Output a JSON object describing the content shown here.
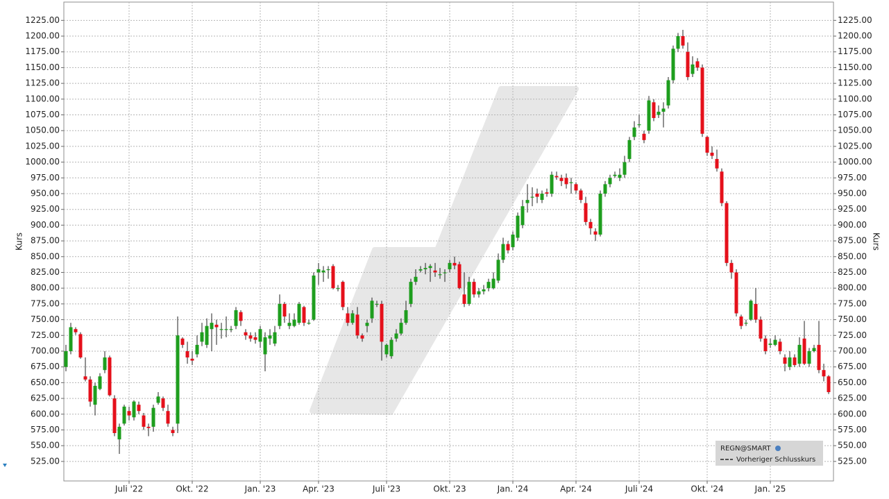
{
  "chart_data": {
    "type": "candlestick",
    "y_label": "Kurs",
    "legend": {
      "title": "REGN@SMART",
      "entries": [
        "Vorheriger Schlusskurs"
      ]
    },
    "up_color": "#1e9e1e",
    "down_color": "#e5101b",
    "grid": true,
    "ylim": [
      494,
      1254
    ],
    "yticks": [
      {
        "value": 525,
        "label": "525.00"
      },
      {
        "value": 550,
        "label": "550.00"
      },
      {
        "value": 575,
        "label": "575.00"
      },
      {
        "value": 600,
        "label": "600.00"
      },
      {
        "value": 625,
        "label": "625.00"
      },
      {
        "value": 650,
        "label": "650.00"
      },
      {
        "value": 675,
        "label": "675.00"
      },
      {
        "value": 700,
        "label": "700.00"
      },
      {
        "value": 725,
        "label": "725.00"
      },
      {
        "value": 750,
        "label": "750.00"
      },
      {
        "value": 775,
        "label": "775.00"
      },
      {
        "value": 800,
        "label": "800.00"
      },
      {
        "value": 825,
        "label": "825.00"
      },
      {
        "value": 850,
        "label": "850.00"
      },
      {
        "value": 875,
        "label": "875.00"
      },
      {
        "value": 900,
        "label": "900.00"
      },
      {
        "value": 925,
        "label": "925.00"
      },
      {
        "value": 950,
        "label": "950.00"
      },
      {
        "value": 975,
        "label": "975.00"
      },
      {
        "value": 1000,
        "label": "1000.00"
      },
      {
        "value": 1025,
        "label": "1025.00"
      },
      {
        "value": 1050,
        "label": "1050.00"
      },
      {
        "value": 1075,
        "label": "1075.00"
      },
      {
        "value": 1100,
        "label": "1100.00"
      },
      {
        "value": 1125,
        "label": "1125.00"
      },
      {
        "value": 1150,
        "label": "1150.00"
      },
      {
        "value": 1175,
        "label": "1175.00"
      },
      {
        "value": 1200,
        "label": "1200.00"
      },
      {
        "value": 1225,
        "label": "1225.00"
      }
    ],
    "categories": [
      null,
      null,
      null,
      null,
      null,
      null,
      null,
      null,
      null,
      null,
      null,
      null,
      null,
      "Juli '22",
      null,
      null,
      null,
      null,
      null,
      null,
      null,
      null,
      null,
      null,
      null,
      null,
      "Okt. '22",
      null,
      null,
      null,
      null,
      null,
      null,
      null,
      null,
      null,
      null,
      null,
      null,
      null,
      "Jan. '23",
      null,
      null,
      null,
      null,
      null,
      null,
      null,
      null,
      null,
      null,
      null,
      "Apr. '23",
      null,
      null,
      null,
      null,
      null,
      null,
      null,
      null,
      null,
      null,
      null,
      null,
      null,
      "Juli '23",
      null,
      null,
      null,
      null,
      null,
      null,
      null,
      null,
      null,
      null,
      null,
      null,
      "Okt. '23",
      null,
      null,
      null,
      null,
      null,
      null,
      null,
      null,
      null,
      null,
      null,
      null,
      "Jan. '24",
      null,
      null,
      null,
      null,
      null,
      null,
      null,
      null,
      null,
      null,
      null,
      null,
      "Apr. '24",
      null,
      null,
      null,
      null,
      null,
      null,
      null,
      null,
      null,
      null,
      null,
      null,
      "Juli '24",
      null,
      null,
      null,
      null,
      null,
      null,
      null,
      null,
      null,
      null,
      null,
      null,
      null,
      "Okt. '24",
      null,
      null,
      null,
      null,
      null,
      null,
      null,
      null,
      null,
      null,
      null,
      null,
      "Jan. '25",
      null,
      null,
      null,
      null,
      null,
      null,
      null,
      null,
      null,
      null,
      null,
      null
    ],
    "open": [
      675,
      700,
      735,
      727,
      660,
      655,
      615,
      640,
      670,
      690,
      625,
      560,
      585,
      605,
      595,
      615,
      598,
      580,
      580,
      618,
      625,
      605,
      575,
      585,
      720,
      700,
      688,
      695,
      715,
      710,
      735,
      742,
      735,
      735,
      735,
      740,
      762,
      730,
      725,
      722,
      715,
      695,
      720,
      712,
      740,
      775,
      740,
      740,
      745,
      770,
      745,
      750,
      825,
      825,
      830,
      835,
      800,
      810,
      760,
      745,
      758,
      725,
      740,
      752,
      775,
      775,
      695,
      692,
      720,
      728,
      745,
      775,
      810,
      828,
      830,
      832,
      828,
      822,
      825,
      830,
      840,
      838,
      790,
      775,
      810,
      790,
      795,
      800,
      800,
      812,
      845,
      870,
      865,
      880,
      900,
      935,
      945,
      950,
      940,
      952,
      950,
      978,
      975,
      975,
      968,
      965,
      955,
      935,
      905,
      890,
      885,
      950,
      965,
      978,
      975,
      980,
      1005,
      1040,
      1060,
      1045,
      1050,
      1095,
      1075,
      1080,
      1090,
      1130,
      1180,
      1200,
      1175,
      1140,
      1160,
      1150,
      1040,
      1015,
      1005,
      985,
      935,
      840,
      825,
      755,
      745,
      750,
      775,
      750,
      720,
      710,
      710,
      715,
      690,
      675,
      690,
      680,
      720,
      680,
      700,
      710,
      670,
      660
    ],
    "high": [
      710,
      745,
      738,
      730,
      690,
      660,
      650,
      665,
      700,
      693,
      630,
      585,
      615,
      612,
      622,
      620,
      602,
      585,
      615,
      635,
      628,
      615,
      580,
      755,
      722,
      715,
      700,
      725,
      745,
      752,
      760,
      750,
      745,
      755,
      740,
      770,
      765,
      735,
      730,
      730,
      740,
      730,
      735,
      740,
      790,
      778,
      760,
      760,
      778,
      772,
      750,
      825,
      840,
      835,
      835,
      838,
      805,
      812,
      770,
      765,
      770,
      728,
      750,
      785,
      780,
      780,
      712,
      722,
      735,
      752,
      780,
      815,
      830,
      835,
      840,
      838,
      840,
      832,
      830,
      845,
      850,
      842,
      825,
      818,
      815,
      800,
      805,
      815,
      825,
      855,
      880,
      875,
      890,
      920,
      940,
      965,
      960,
      958,
      955,
      958,
      985,
      985,
      980,
      982,
      975,
      968,
      958,
      945,
      910,
      895,
      955,
      970,
      980,
      985,
      990,
      1010,
      1040,
      1065,
      1075,
      1050,
      1105,
      1100,
      1090,
      1095,
      1135,
      1185,
      1205,
      1210,
      1190,
      1168,
      1165,
      1155,
      1042,
      1025,
      1020,
      990,
      938,
      845,
      830,
      758,
      750,
      782,
      800,
      755,
      725,
      720,
      725,
      720,
      695,
      700,
      695,
      722,
      748,
      705,
      710,
      748,
      680,
      662
    ],
    "low": [
      668,
      695,
      726,
      688,
      652,
      612,
      598,
      638,
      665,
      628,
      565,
      537,
      582,
      590,
      590,
      600,
      575,
      565,
      572,
      615,
      605,
      580,
      565,
      570,
      705,
      680,
      678,
      690,
      708,
      705,
      700,
      710,
      720,
      722,
      730,
      735,
      740,
      718,
      715,
      712,
      705,
      668,
      710,
      708,
      735,
      745,
      735,
      738,
      742,
      740,
      742,
      748,
      805,
      810,
      815,
      798,
      795,
      765,
      740,
      742,
      720,
      715,
      730,
      745,
      770,
      685,
      690,
      688,
      715,
      725,
      742,
      770,
      805,
      825,
      822,
      810,
      818,
      815,
      810,
      825,
      830,
      798,
      770,
      772,
      785,
      785,
      790,
      795,
      798,
      808,
      840,
      855,
      860,
      875,
      895,
      920,
      930,
      935,
      935,
      945,
      945,
      972,
      962,
      958,
      950,
      950,
      935,
      900,
      885,
      875,
      882,
      945,
      960,
      975,
      970,
      975,
      1000,
      1035,
      1055,
      1030,
      1045,
      1065,
      1070,
      1055,
      1085,
      1125,
      1175,
      1180,
      1130,
      1135,
      1145,
      1040,
      1010,
      1005,
      985,
      930,
      835,
      815,
      755,
      735,
      740,
      748,
      745,
      715,
      695,
      705,
      708,
      695,
      668,
      670,
      675,
      675,
      678,
      675,
      698,
      665,
      652,
      632
    ],
    "close": [
      700,
      738,
      730,
      690,
      655,
      620,
      645,
      660,
      690,
      630,
      570,
      580,
      612,
      598,
      620,
      605,
      580,
      578,
      610,
      628,
      610,
      585,
      570,
      725,
      710,
      690,
      685,
      710,
      730,
      740,
      745,
      738,
      735,
      735,
      735,
      765,
      748,
      725,
      720,
      718,
      735,
      722,
      725,
      730,
      775,
      755,
      745,
      750,
      775,
      745,
      745,
      820,
      830,
      828,
      830,
      800,
      800,
      770,
      745,
      760,
      725,
      720,
      745,
      780,
      775,
      715,
      710,
      718,
      728,
      745,
      765,
      810,
      818,
      830,
      832,
      835,
      825,
      822,
      825,
      840,
      836,
      800,
      775,
      810,
      790,
      795,
      798,
      810,
      815,
      845,
      870,
      860,
      885,
      915,
      930,
      940,
      945,
      945,
      950,
      950,
      980,
      976,
      970,
      965,
      968,
      955,
      940,
      905,
      895,
      885,
      950,
      965,
      975,
      980,
      980,
      1000,
      1035,
      1055,
      1060,
      1035,
      1098,
      1070,
      1080,
      1085,
      1130,
      1180,
      1200,
      1185,
      1135,
      1155,
      1150,
      1045,
      1015,
      1010,
      990,
      935,
      840,
      825,
      760,
      740,
      745,
      780,
      750,
      720,
      700,
      712,
      718,
      700,
      680,
      690,
      678,
      710,
      680,
      700,
      705,
      670,
      660,
      635
    ]
  }
}
